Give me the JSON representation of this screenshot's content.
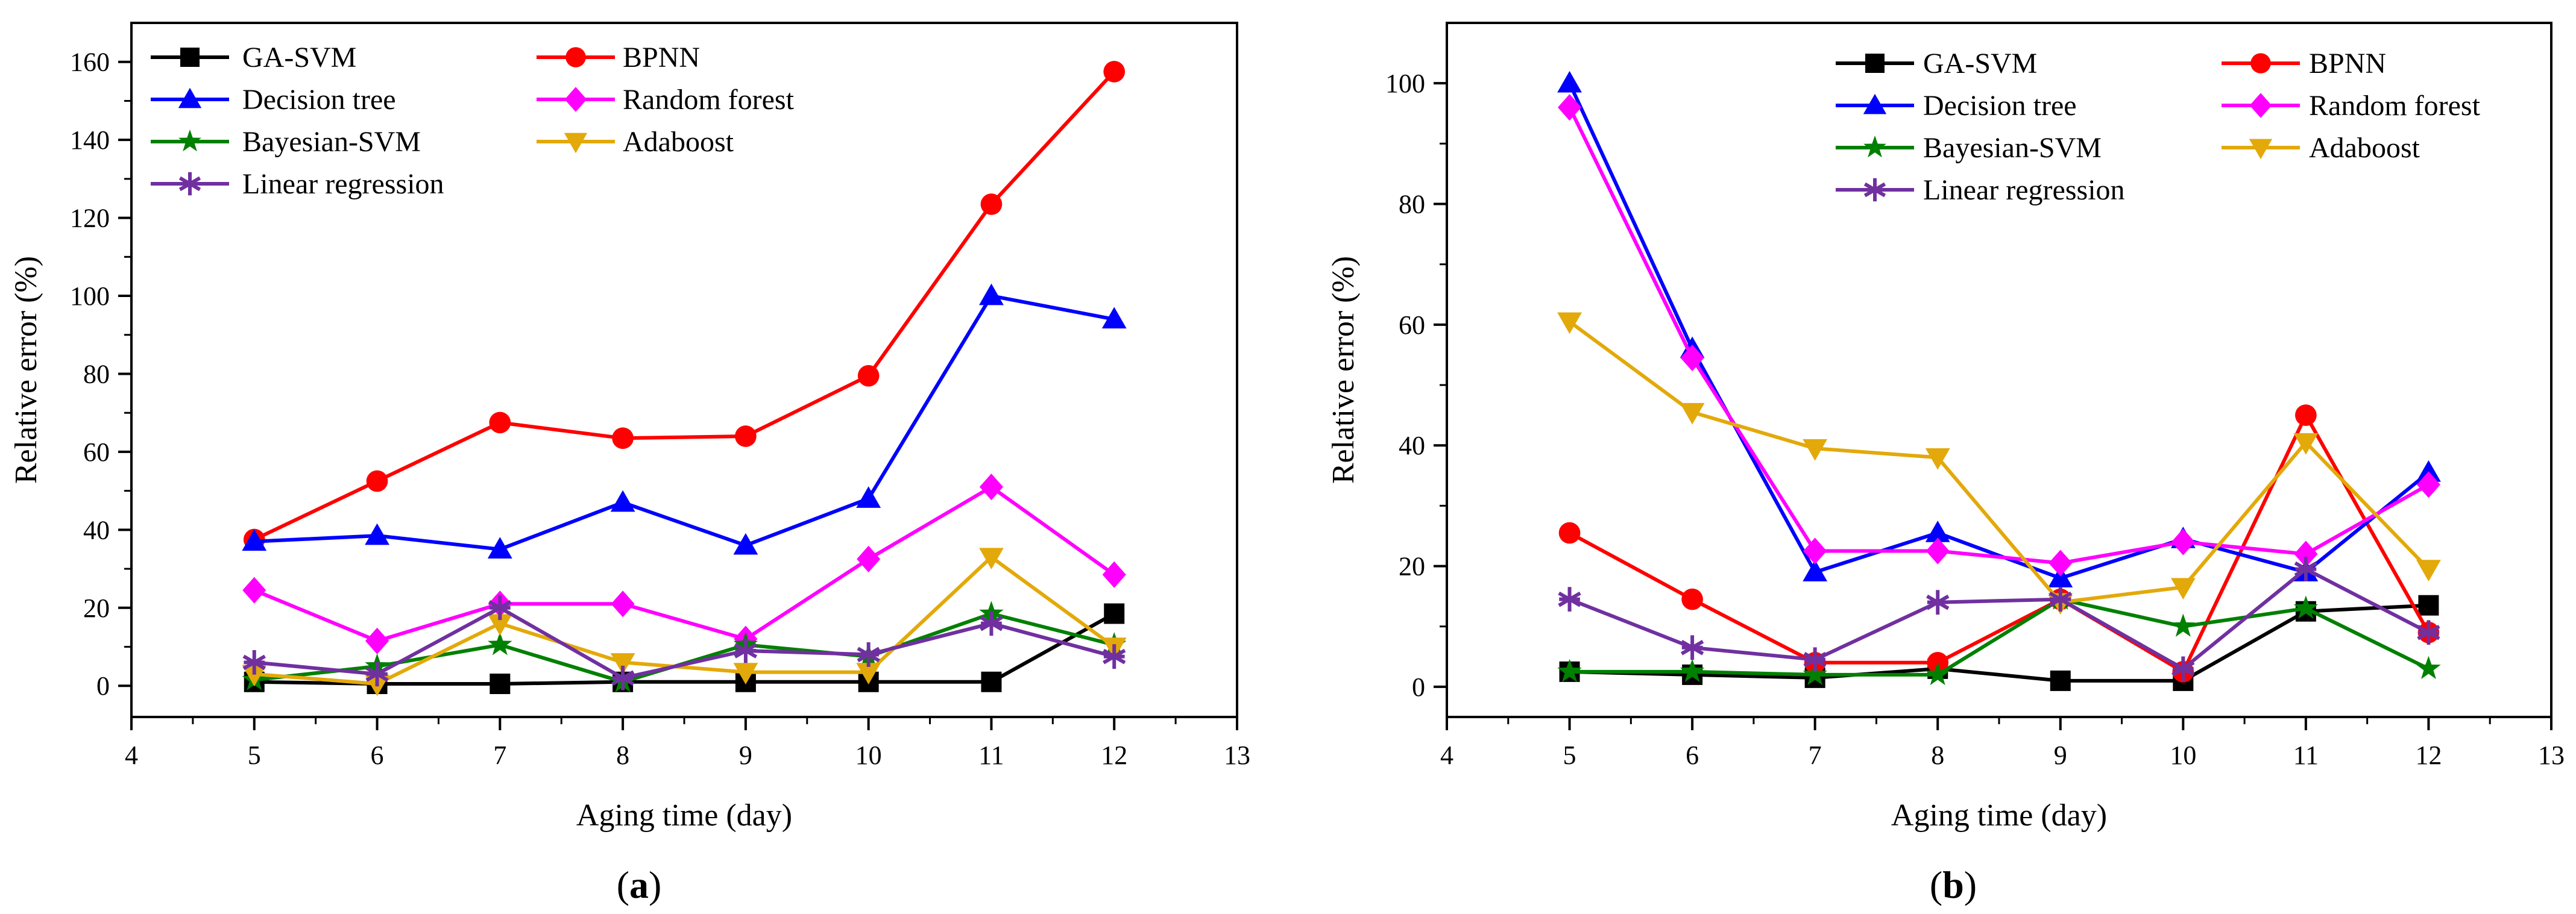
{
  "chart_data": [
    {
      "type": "line",
      "panel_label": "a",
      "xlabel": "Aging time (day)",
      "ylabel": "Relative error (%)",
      "xlim": [
        4,
        13
      ],
      "ylim": [
        -8,
        170
      ],
      "xticks": [
        4,
        5,
        6,
        7,
        8,
        9,
        10,
        11,
        12,
        13
      ],
      "yticks": [
        0,
        20,
        40,
        60,
        80,
        100,
        120,
        140,
        160
      ],
      "grid": false,
      "legend_position": "top-left",
      "x": [
        5,
        6,
        7,
        8,
        9,
        10,
        11,
        12
      ],
      "series": [
        {
          "name": "GA-SVM",
          "color": "#000000",
          "marker": "square",
          "values": [
            1,
            0.5,
            0.5,
            1,
            1,
            1,
            1,
            18.5
          ]
        },
        {
          "name": "BPNN",
          "color": "#ff0000",
          "marker": "circle",
          "values": [
            37.5,
            52.5,
            67.5,
            63.5,
            64,
            79.5,
            123.5,
            157.5
          ]
        },
        {
          "name": "Decision tree",
          "color": "#0000ff",
          "marker": "triangle-up",
          "values": [
            37,
            38.5,
            35,
            47,
            36,
            48,
            100,
            94
          ]
        },
        {
          "name": "Random forest",
          "color": "#ff00ff",
          "marker": "diamond",
          "values": [
            24.5,
            11.5,
            21,
            21,
            12,
            32.5,
            51,
            28.5
          ]
        },
        {
          "name": "Bayesian-SVM",
          "color": "#008000",
          "marker": "star",
          "values": [
            1.5,
            5,
            10.5,
            1,
            10.5,
            7.5,
            18.5,
            10.5
          ]
        },
        {
          "name": "Adaboost",
          "color": "#e3a90a",
          "marker": "triangle-down",
          "values": [
            3,
            0.5,
            16,
            6,
            3.5,
            3.5,
            33,
            10
          ]
        },
        {
          "name": "Linear regression",
          "color": "#7030a0",
          "marker": "asterisk",
          "values": [
            6,
            3,
            20,
            2,
            9,
            8,
            16,
            7.5
          ]
        }
      ]
    },
    {
      "type": "line",
      "panel_label": "b",
      "xlabel": "Aging time (day)",
      "ylabel": "Relative error (%)",
      "xlim": [
        4,
        13
      ],
      "ylim": [
        -5,
        110
      ],
      "xticks": [
        4,
        5,
        6,
        7,
        8,
        9,
        10,
        11,
        12,
        13
      ],
      "yticks": [
        0,
        20,
        40,
        60,
        80,
        100
      ],
      "grid": false,
      "legend_position": "top-right",
      "x": [
        5,
        6,
        7,
        8,
        9,
        10,
        11,
        12
      ],
      "series": [
        {
          "name": "GA-SVM",
          "color": "#000000",
          "marker": "square",
          "values": [
            2.5,
            2,
            1.5,
            3,
            1,
            1,
            12.5,
            13.5
          ]
        },
        {
          "name": "BPNN",
          "color": "#ff0000",
          "marker": "circle",
          "values": [
            25.5,
            14.5,
            4,
            4,
            14.5,
            2.5,
            45,
            9
          ]
        },
        {
          "name": "Decision tree",
          "color": "#0000ff",
          "marker": "triangle-up",
          "values": [
            100,
            56,
            19,
            25.5,
            18,
            24.5,
            19,
            35.5
          ]
        },
        {
          "name": "Random forest",
          "color": "#ff00ff",
          "marker": "diamond",
          "values": [
            96,
            54.5,
            22.5,
            22.5,
            20.5,
            24,
            22,
            33.5
          ]
        },
        {
          "name": "Bayesian-SVM",
          "color": "#008000",
          "marker": "star",
          "values": [
            2.5,
            2.5,
            2,
            2,
            14.5,
            10,
            13,
            3
          ]
        },
        {
          "name": "Adaboost",
          "color": "#e3a90a",
          "marker": "triangle-down",
          "values": [
            60.5,
            45.5,
            39.5,
            38,
            14,
            16.5,
            40.5,
            19.5
          ]
        },
        {
          "name": "Linear regression",
          "color": "#7030a0",
          "marker": "asterisk",
          "values": [
            14.5,
            6.5,
            4.5,
            14,
            14.5,
            3,
            19.5,
            9
          ]
        }
      ]
    }
  ]
}
